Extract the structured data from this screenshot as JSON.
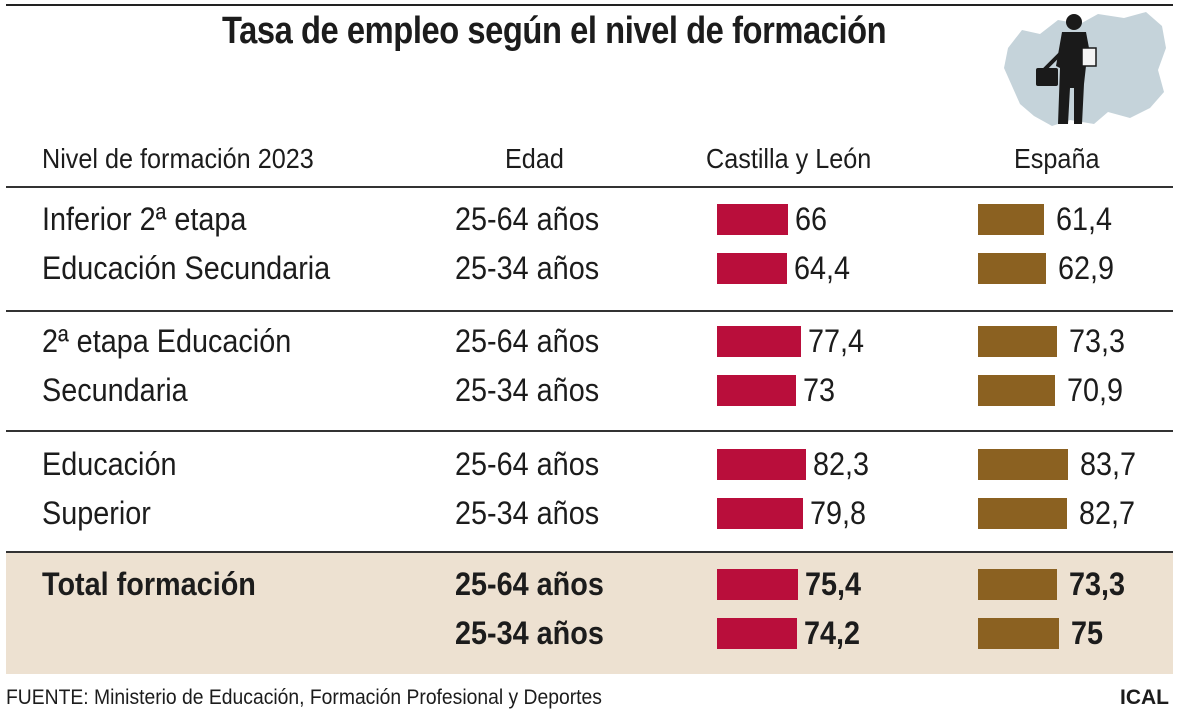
{
  "chart_data": {
    "type": "bar",
    "title": "Tasa de empleo según el nivel de formación",
    "headers": {
      "level": "Nivel de formación 2023",
      "age": "Edad",
      "cyl": "Castilla y León",
      "esp": "España"
    },
    "series": [
      {
        "name": "Castilla y León",
        "color": "#b90e3b"
      },
      {
        "name": "España",
        "color": "#8b6121"
      }
    ],
    "groups": [
      {
        "label_lines": [
          "Inferior 2ª etapa",
          "Educación Secundaria"
        ],
        "bold": false,
        "rows": [
          {
            "age": "25-64 años",
            "cyl": 66,
            "cyl_label": "66",
            "esp": 61.4,
            "esp_label": "61,4"
          },
          {
            "age": "25-34 años",
            "cyl": 64.4,
            "cyl_label": "64,4",
            "esp": 62.9,
            "esp_label": "62,9"
          }
        ]
      },
      {
        "label_lines": [
          "2ª etapa Educación",
          "Secundaria"
        ],
        "bold": false,
        "rows": [
          {
            "age": "25-64 años",
            "cyl": 77.4,
            "cyl_label": "77,4",
            "esp": 73.3,
            "esp_label": "73,3"
          },
          {
            "age": "25-34 años",
            "cyl": 73,
            "cyl_label": "73",
            "esp": 70.9,
            "esp_label": "70,9"
          }
        ]
      },
      {
        "label_lines": [
          "Educación",
          "Superior"
        ],
        "bold": false,
        "rows": [
          {
            "age": "25-64 años",
            "cyl": 82.3,
            "cyl_label": "82,3",
            "esp": 83.7,
            "esp_label": "83,7"
          },
          {
            "age": "25-34 años",
            "cyl": 79.8,
            "cyl_label": "79,8",
            "esp": 82.7,
            "esp_label": "82,7"
          }
        ]
      },
      {
        "label_lines": [
          "Total formación",
          ""
        ],
        "bold": true,
        "rows": [
          {
            "age": "25-64 años",
            "cyl": 75.4,
            "cyl_label": "75,4",
            "esp": 73.3,
            "esp_label": "73,3"
          },
          {
            "age": "25-34 años",
            "cyl": 74.2,
            "cyl_label": "74,2",
            "esp": 75,
            "esp_label": "75"
          }
        ]
      }
    ]
  },
  "footer": {
    "source": "FUENTE: Ministerio de Educación, Formación Profesional y Deportes",
    "credit": "ICAL"
  },
  "icons": {
    "illustration": "worker-silhouette-map-icon"
  }
}
